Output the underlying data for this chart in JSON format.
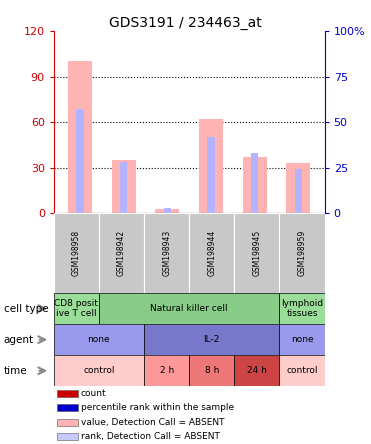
{
  "title": "GDS3191 / 234463_at",
  "samples": [
    "GSM198958",
    "GSM198942",
    "GSM198943",
    "GSM198944",
    "GSM198945",
    "GSM198959"
  ],
  "bar_values": [
    100,
    35,
    3,
    62,
    37,
    33
  ],
  "rank_values": [
    57,
    28,
    3,
    42,
    33,
    24
  ],
  "bar_color": "#ffb3b3",
  "rank_color": "#b3b3ff",
  "ylim_left": [
    0,
    120
  ],
  "ylim_right": [
    0,
    100
  ],
  "yticks_left": [
    0,
    30,
    60,
    90,
    120
  ],
  "yticks_right": [
    0,
    25,
    50,
    75,
    100
  ],
  "ylabel_left_color": "#cc0000",
  "ylabel_right_color": "#0000cc",
  "sample_bg": "#c8c8c8",
  "cell_type_row": {
    "label": "cell type",
    "cells": [
      {
        "text": "CD8 posit\nive T cell",
        "span": 1,
        "color": "#99dd99"
      },
      {
        "text": "Natural killer cell",
        "span": 4,
        "color": "#88cc88"
      },
      {
        "text": "lymphoid\ntissues",
        "span": 1,
        "color": "#99dd99"
      }
    ]
  },
  "agent_row": {
    "label": "agent",
    "cells": [
      {
        "text": "none",
        "span": 2,
        "color": "#9999ee"
      },
      {
        "text": "IL-2",
        "span": 3,
        "color": "#7777cc"
      },
      {
        "text": "none",
        "span": 1,
        "color": "#9999ee"
      }
    ]
  },
  "time_row": {
    "label": "time",
    "cells": [
      {
        "text": "control",
        "span": 2,
        "color": "#ffcccc"
      },
      {
        "text": "2 h",
        "span": 1,
        "color": "#ff9999"
      },
      {
        "text": "8 h",
        "span": 1,
        "color": "#ee7777"
      },
      {
        "text": "24 h",
        "span": 1,
        "color": "#cc4444"
      },
      {
        "text": "control",
        "span": 1,
        "color": "#ffcccc"
      }
    ]
  },
  "legend_items": [
    {
      "color": "#cc0000",
      "label": "count"
    },
    {
      "color": "#0000cc",
      "label": "percentile rank within the sample"
    },
    {
      "color": "#ffb3b3",
      "label": "value, Detection Call = ABSENT"
    },
    {
      "color": "#c8c8ff",
      "label": "rank, Detection Call = ABSENT"
    }
  ]
}
